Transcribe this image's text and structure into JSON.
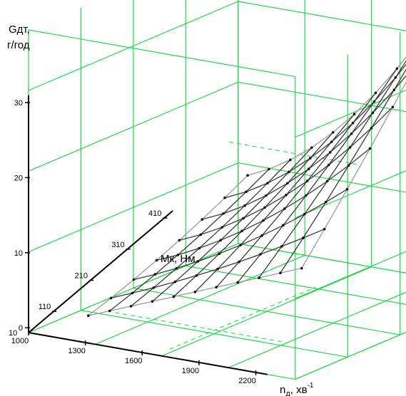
{
  "chart_data": {
    "type": "surface",
    "zlabel_line1": "Gдт,",
    "zlabel_line2": "г/год",
    "ylabel": "Мк, Нм",
    "xlabel_main": "n",
    "xlabel_sub": "д",
    "xlabel_unit": ", хв",
    "xlabel_sup": "-1",
    "z_ticks": [
      "0",
      "10",
      "20",
      "30"
    ],
    "z_origin_label": "10",
    "x_ticks": [
      "1000",
      "1300",
      "1600",
      "1900",
      "2200"
    ],
    "y_ticks": [
      "110",
      "210",
      "310",
      "410"
    ],
    "zlim": [
      0,
      30
    ],
    "colors": {
      "grid": "#22d84a",
      "surface_line": "#9a9a9a",
      "front_line": "#3a3a3a",
      "axis": "#000000"
    }
  }
}
